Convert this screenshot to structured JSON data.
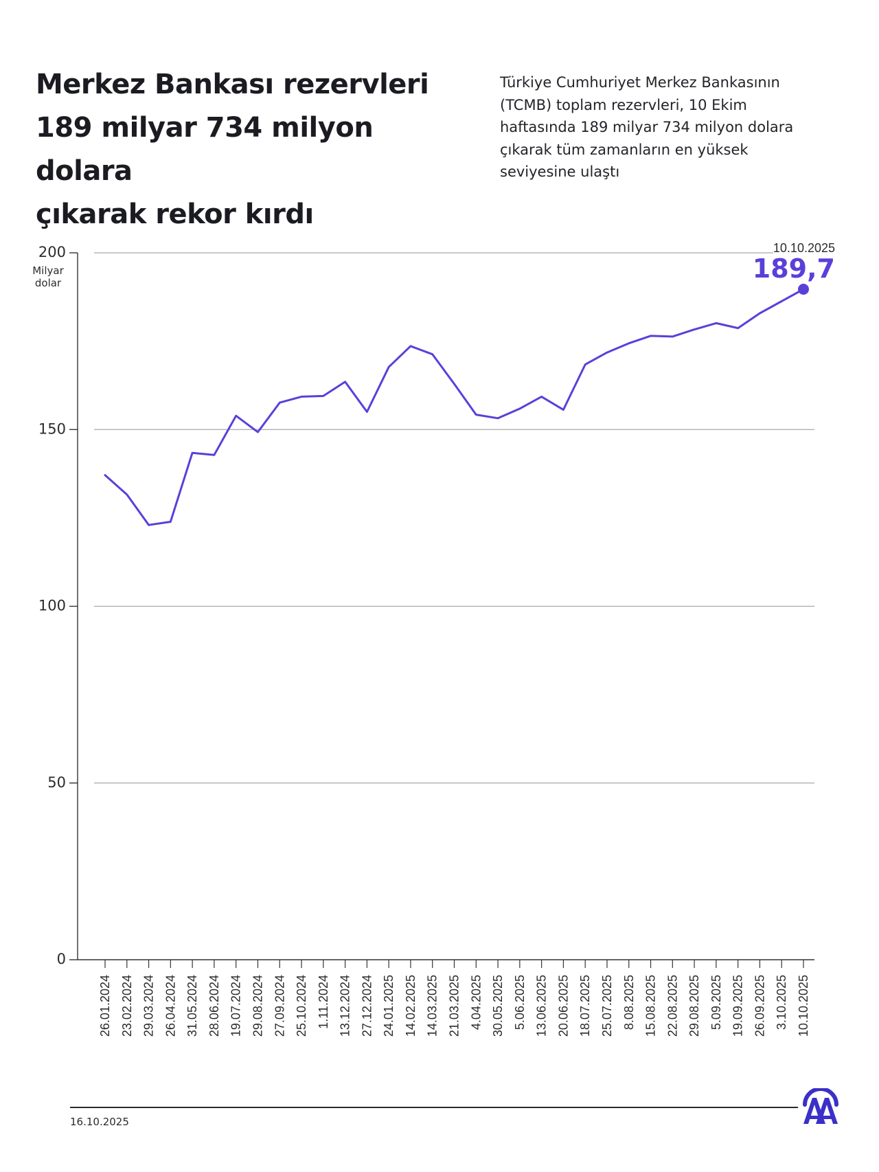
{
  "header": {
    "title_lines": [
      "Merkez Bankası rezervleri",
      "189 milyar 734 milyon dolara",
      "çıkarak rekor kırdı"
    ],
    "description_lines": [
      "Türkiye Cumhuriyet Merkez Bankasının",
      "(TCMB) toplam rezervleri, 10 Ekim",
      "haftasında 189 milyar 734 milyon dolara",
      "çıkarak tüm zamanların en yüksek",
      "seviyesine ulaştı"
    ]
  },
  "chart_data": {
    "type": "line",
    "title": "",
    "ylabel": "Milyar dolar",
    "ylabel_lines": [
      "Milyar",
      "dolar"
    ],
    "ylim": [
      0,
      200
    ],
    "yticks": [
      0,
      50,
      100,
      150,
      200
    ],
    "grid": true,
    "line_color": "#5b3fd9",
    "series": [
      {
        "x": [
          "26.01.2024",
          "23.02.2024",
          "29.03.2024",
          "26.04.2024",
          "31.05.2024",
          "28.06.2024",
          "19.07.2024",
          "29.08.2024",
          "27.09.2024",
          "25.10.2024",
          "1.11.2024",
          "13.12.2024",
          "27.12.2024",
          "24.01.2025",
          "14.02.2025",
          "14.03.2025",
          "21.03.2025",
          "4.04.2025",
          "30.05.2025",
          "5.06.2025",
          "13.06.2025",
          "20.06.2025",
          "18.07.2025",
          "25.07.2025",
          "8.08.2025",
          "15.08.2025",
          "22.08.2025",
          "29.08.2025",
          "5.09.2025",
          "19.09.2025",
          "26.09.2025",
          "3.10.2025",
          "10.10.2025"
        ],
        "values": [
          137.1,
          131.6,
          123.0,
          123.9,
          143.4,
          142.8,
          153.9,
          149.3,
          157.6,
          159.3,
          159.5,
          163.5,
          155.0,
          167.7,
          173.6,
          171.3,
          162.9,
          154.2,
          153.2,
          155.9,
          159.3,
          155.6,
          168.4,
          171.8,
          174.4,
          176.5,
          176.3,
          178.3,
          180.1,
          178.7,
          182.9,
          186.3,
          189.7
        ]
      }
    ],
    "annotation": {
      "date": "10.10.2025",
      "value_label": "189,7"
    }
  },
  "footer": {
    "date": "16.10.2025"
  },
  "logo": {
    "icon": "aa-logo-icon",
    "color": "#3b30c8"
  }
}
